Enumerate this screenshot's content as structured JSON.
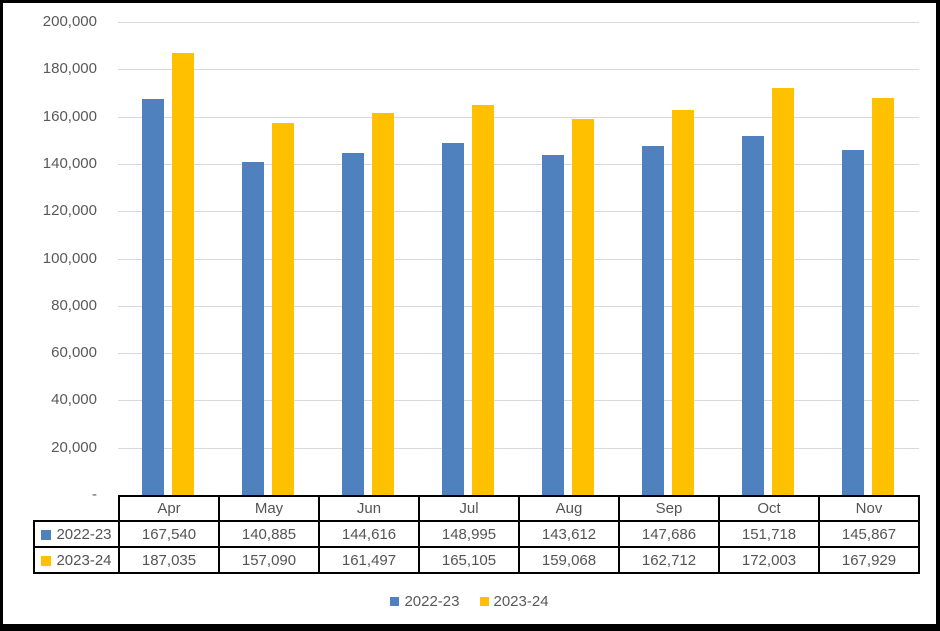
{
  "chart_data": {
    "type": "bar",
    "title": "",
    "xlabel": "",
    "ylabel": "",
    "categories": [
      "Apr",
      "May",
      "Jun",
      "Jul",
      "Aug",
      "Sep",
      "Oct",
      "Nov"
    ],
    "series": [
      {
        "name": "2022-23",
        "color": "#4E81BD",
        "values": [
          167540,
          140885,
          144616,
          148995,
          143612,
          147686,
          151718,
          145867
        ]
      },
      {
        "name": "2023-24",
        "color": "#FFC000",
        "values": [
          187035,
          157090,
          161497,
          165105,
          159068,
          162712,
          172003,
          167929
        ]
      }
    ],
    "ylim": [
      0,
      200000
    ],
    "ytick_step": 20000,
    "ytick_labels": [
      "-",
      "20,000",
      "40,000",
      "60,000",
      "80,000",
      "100,000",
      "120,000",
      "140,000",
      "160,000",
      "180,000",
      "200,000"
    ],
    "grid": true,
    "legend_position": "bottom",
    "data_table_shown": true
  },
  "legend": {
    "items": [
      {
        "label": "2022-23",
        "color": "#4E81BD"
      },
      {
        "label": "2023-24",
        "color": "#FFC000"
      }
    ]
  },
  "colors": {
    "series_2022_23": "#4E81BD",
    "series_2023_24": "#FFC000",
    "gridline": "#D9D9D9",
    "axis_text": "#595959",
    "table_text": "#545454",
    "table_border": "#000000",
    "frame_border": "#000000",
    "background": "#FFFFFF"
  }
}
